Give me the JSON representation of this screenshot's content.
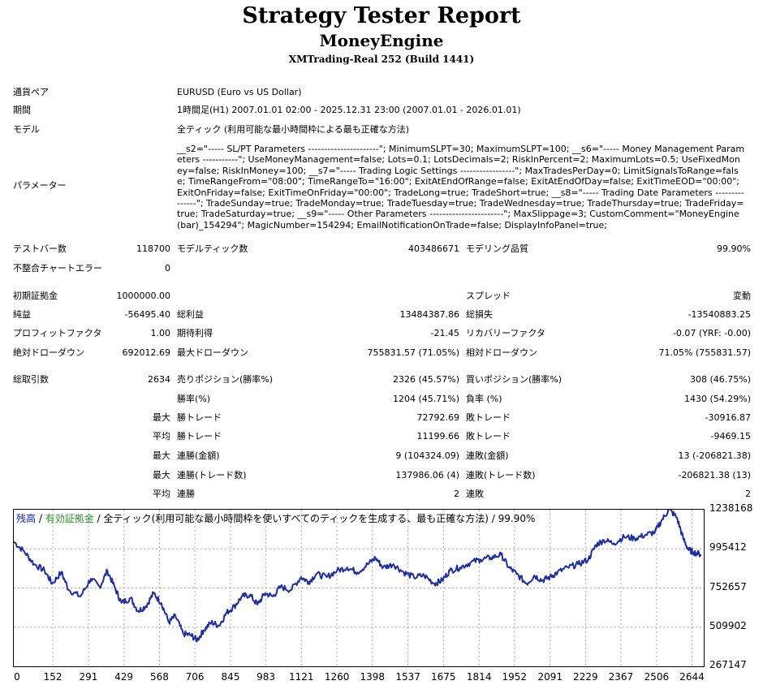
{
  "header": {
    "title": "Strategy Tester Report",
    "ea_name": "MoneyEngine",
    "server": "XMTrading-Real 252 (Build 1441)"
  },
  "info": {
    "symbol_label": "通貨ペア",
    "symbol_value": "EURUSD (Euro vs US Dollar)",
    "period_label": "期間",
    "period_value": "1時間足(H1) 2007.01.01 02:00 - 2025.12.31 23:00 (2007.01.01 - 2026.01.01)",
    "model_label": "モデル",
    "model_value": "全ティック (利用可能な最小時間枠による最も正確な方法)",
    "params_label": "パラメーター",
    "params_value": "__s2=\"----- SL/PT Parameters ----------------------\"; MinimumSLPT=30; MaximumSLPT=100; __s6=\"----- Money Management Parameters -----------\"; UseMoneyManagement=false; Lots=0.1; LotsDecimals=2; RiskInPercent=2; MaximumLots=0.5; UseFixedMoney=false; RiskInMoney=100; __s7=\"----- Trading Logic Settings -----------------\"; MaxTradesPerDay=0; LimitSignalsToRange=false; TimeRangeFrom=\"08:00\"; TimeRangeTo=\"16:00\"; ExitAtEndOfRange=false; ExitAtEndOfDay=false; ExitTimeEOD=\"00:00\"; ExitOnFriday=false; ExitTimeOnFriday=\"00:00\"; TradeLong=true; TradeShort=true; __s8=\"----- Trading Date Parameters ---------------\"; TradeSunday=true; TradeMonday=true; TradeTuesday=true; TradeWednesday=true; TradeThursday=true; TradeFriday=true; TradeSaturday=true; __s9=\"----- Other Parameters -----------------------\"; MaxSlippage=3; CustomComment=\"MoneyEngine(bar)_154294\"; MagicNumber=154294; EmailNotificationOnTrade=false; DisplayInfoPanel=true;"
  },
  "stats": {
    "bars_label": "テストバー数",
    "bars_value": "118700",
    "ticks_label": "モデルティック数",
    "ticks_value": "403486671",
    "quality_label": "モデリング品質",
    "quality_value": "99.90%",
    "mismatch_label": "不整合チャートエラー",
    "mismatch_value": "0",
    "deposit_label": "初期証拠金",
    "deposit_value": "1000000.00",
    "spread_label": "スプレッド",
    "spread_value": "変動",
    "netprofit_label": "純益",
    "netprofit_value": "-56495.40",
    "grossprofit_label": "総利益",
    "grossprofit_value": "13484387.86",
    "grossloss_label": "総損失",
    "grossloss_value": "-13540883.25",
    "pf_label": "プロフィットファクタ",
    "pf_value": "1.00",
    "expected_label": "期待利得",
    "expected_value": "-21.45",
    "recovery_label": "リカバリーファクタ",
    "recovery_value": "-0.07 (YRF: -0.00)",
    "absdd_label": "絶対ドローダウン",
    "absdd_value": "692012.69",
    "maxdd_label": "最大ドローダウン",
    "maxdd_value": "755831.57 (71.05%)",
    "reldd_label": "相対ドローダウン",
    "reldd_value": "71.05% (755831.57)",
    "trades_label": "総取引数",
    "trades_value": "2634",
    "short_label": "売りポジション(勝率%)",
    "short_value": "2326 (45.57%)",
    "long_label": "買いポジション(勝率%)",
    "long_value": "308 (46.75%)",
    "winrate_label": "勝率(%)",
    "winrate_value": "1204 (45.71%)",
    "lossrate_label": "負率 (%)",
    "lossrate_value": "1430 (54.29%)",
    "max_word": "最大",
    "avg_word": "平均",
    "maxwin_label": "勝トレード",
    "maxwin_value": "72792.69",
    "maxloss_label": "敗トレード",
    "maxloss_value": "-30916.87",
    "avgwin_label": "勝トレード",
    "avgwin_value": "11199.66",
    "avgloss_label": "敗トレード",
    "avgloss_value": "-9469.15",
    "consecwin_money_label": "連勝(金額)",
    "consecwin_money_value": "9 (104324.09)",
    "consecloss_money_label": "連敗(金額)",
    "consecloss_money_value": "13 (-206821.38)",
    "consecwin_count_label": "連勝(トレード数)",
    "consecwin_count_value": "137986.06 (4)",
    "consecloss_count_label": "連敗(トレード数)",
    "consecloss_count_value": "-206821.38 (13)",
    "avgconsecwin_label": "連勝",
    "avgconsecwin_value": "2",
    "avgconsecloss_label": "連敗",
    "avgconsecloss_value": "2"
  },
  "chart_legend": {
    "balance": "残高",
    "sep1": " / ",
    "equity": "有効証拠金",
    "sep2": " / ",
    "model": "全ティック(利用可能な最小時間枠を使いすべてのティックを生成する、最も正確な方法) / 99.90%"
  },
  "colors": {
    "balance": "#1f2e9e",
    "balance_label": "#0b24a8",
    "equity_label": "#2e8b2e",
    "grid": "#aaaaaa",
    "zero_line": "#9aa0c8"
  },
  "chart_data": {
    "type": "line",
    "title": "",
    "xlabel": "",
    "ylabel": "",
    "x_ticks": [
      "0",
      "152",
      "291",
      "429",
      "568",
      "706",
      "845",
      "983",
      "1121",
      "1260",
      "1398",
      "1537",
      "1675",
      "1814",
      "1952",
      "2091",
      "2229",
      "2367",
      "2506",
      "2644"
    ],
    "y_ticks": [
      "1238168",
      "995412",
      "752657",
      "509902",
      "267147"
    ],
    "xlim": [
      0,
      2690
    ],
    "ylim": [
      267147,
      1238168
    ],
    "grid": true,
    "series": [
      {
        "values": [
          [
            0,
            1040000
          ],
          [
            40,
            980000
          ],
          [
            80,
            900000
          ],
          [
            120,
            860000
          ],
          [
            150,
            780000
          ],
          [
            185,
            850000
          ],
          [
            215,
            740000
          ],
          [
            260,
            700000
          ],
          [
            300,
            810000
          ],
          [
            335,
            760000
          ],
          [
            365,
            860000
          ],
          [
            395,
            750000
          ],
          [
            420,
            660000
          ],
          [
            455,
            690000
          ],
          [
            485,
            610000
          ],
          [
            515,
            640000
          ],
          [
            545,
            720000
          ],
          [
            575,
            660000
          ],
          [
            605,
            540000
          ],
          [
            630,
            580000
          ],
          [
            660,
            470000
          ],
          [
            690,
            460000
          ],
          [
            715,
            430000
          ],
          [
            740,
            490000
          ],
          [
            770,
            540000
          ],
          [
            800,
            520000
          ],
          [
            830,
            600000
          ],
          [
            860,
            640000
          ],
          [
            890,
            700000
          ],
          [
            920,
            710000
          ],
          [
            950,
            650000
          ],
          [
            980,
            720000
          ],
          [
            1010,
            700000
          ],
          [
            1040,
            760000
          ],
          [
            1080,
            740000
          ],
          [
            1120,
            820000
          ],
          [
            1150,
            790000
          ],
          [
            1180,
            840000
          ],
          [
            1220,
            820000
          ],
          [
            1260,
            860000
          ],
          [
            1300,
            880000
          ],
          [
            1340,
            850000
          ],
          [
            1380,
            900000
          ],
          [
            1410,
            940000
          ],
          [
            1440,
            880000
          ],
          [
            1480,
            900000
          ],
          [
            1520,
            850000
          ],
          [
            1560,
            820000
          ],
          [
            1600,
            830000
          ],
          [
            1640,
            780000
          ],
          [
            1670,
            800000
          ],
          [
            1700,
            860000
          ],
          [
            1740,
            880000
          ],
          [
            1780,
            910000
          ],
          [
            1820,
            930000
          ],
          [
            1860,
            940000
          ],
          [
            1900,
            960000
          ],
          [
            1930,
            880000
          ],
          [
            1960,
            840000
          ],
          [
            2000,
            780000
          ],
          [
            2030,
            830000
          ],
          [
            2060,
            800000
          ],
          [
            2090,
            820000
          ],
          [
            2120,
            850000
          ],
          [
            2160,
            880000
          ],
          [
            2200,
            900000
          ],
          [
            2240,
            930000
          ],
          [
            2270,
            1020000
          ],
          [
            2300,
            1050000
          ],
          [
            2340,
            1030000
          ],
          [
            2380,
            1070000
          ],
          [
            2420,
            1060000
          ],
          [
            2460,
            1080000
          ],
          [
            2500,
            1100000
          ],
          [
            2525,
            1170000
          ],
          [
            2555,
            1240000
          ],
          [
            2585,
            1190000
          ],
          [
            2610,
            1060000
          ],
          [
            2630,
            990000
          ],
          [
            2650,
            975000
          ],
          [
            2680,
            960000
          ]
        ]
      }
    ]
  }
}
